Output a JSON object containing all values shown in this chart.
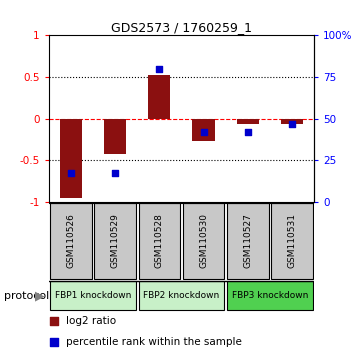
{
  "title": "GDS2573 / 1760259_1",
  "samples": [
    "GSM110526",
    "GSM110529",
    "GSM110528",
    "GSM110530",
    "GSM110527",
    "GSM110531"
  ],
  "log2_ratio": [
    -0.95,
    -0.42,
    0.52,
    -0.27,
    -0.07,
    -0.07
  ],
  "percentile_rank": [
    17,
    17,
    80,
    42,
    42,
    47
  ],
  "groups": [
    {
      "label": "FBP1 knockdown",
      "start": 0,
      "end": 2,
      "color": "#C8F0C8"
    },
    {
      "label": "FBP2 knockdown",
      "start": 2,
      "end": 4,
      "color": "#C8F0C8"
    },
    {
      "label": "FBP3 knockdown",
      "start": 4,
      "end": 6,
      "color": "#50D050"
    }
  ],
  "bar_color": "#8B1010",
  "dot_color": "#0000CC",
  "ylim_left": [
    -1.0,
    1.0
  ],
  "ylim_right": [
    0,
    100
  ],
  "yticks_left": [
    -1,
    -0.5,
    0,
    0.5,
    1
  ],
  "yticks_right": [
    0,
    25,
    50,
    75,
    100
  ],
  "yticklabels_left": [
    "-1",
    "-0.5",
    "0",
    "0.5",
    "1"
  ],
  "yticklabels_right": [
    "0",
    "25",
    "50",
    "75",
    "100%"
  ],
  "hline_dotted": [
    -0.5,
    0.5
  ],
  "hline_dashed_red": 0,
  "legend_log2": "log2 ratio",
  "legend_pct": "percentile rank within the sample",
  "protocol_label": "protocol",
  "sample_box_color": "#C8C8C8",
  "title_fontsize": 9
}
